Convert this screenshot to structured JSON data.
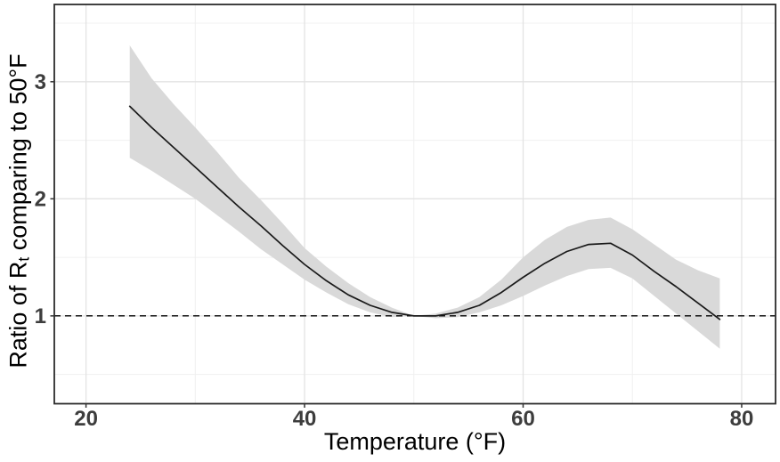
{
  "figure": {
    "background": "#ffffff"
  },
  "chart_data": {
    "type": "line",
    "title": "",
    "xlabel": "Temperature (°F)",
    "ylabel": "Ratio of Rt comparing to 50°F",
    "ylabel_parts": {
      "prefix": "Ratio of R",
      "subscript": "t",
      "suffix": " comparing to 50°F"
    },
    "x": [
      24,
      26,
      28,
      30,
      32,
      34,
      36,
      38,
      40,
      42,
      44,
      46,
      48,
      50,
      52,
      54,
      56,
      58,
      60,
      62,
      64,
      66,
      68,
      70,
      72,
      74,
      76,
      78
    ],
    "series": [
      {
        "name": "ratio-estimate",
        "values": [
          2.79,
          2.61,
          2.44,
          2.27,
          2.1,
          1.93,
          1.77,
          1.6,
          1.44,
          1.3,
          1.18,
          1.09,
          1.03,
          1.0,
          1.0,
          1.03,
          1.09,
          1.2,
          1.33,
          1.45,
          1.55,
          1.61,
          1.62,
          1.52,
          1.38,
          1.25,
          1.11,
          0.97
        ]
      },
      {
        "name": "ci-lower",
        "values": [
          2.35,
          2.24,
          2.12,
          2.0,
          1.86,
          1.72,
          1.57,
          1.44,
          1.31,
          1.2,
          1.1,
          1.03,
          0.99,
          1.0,
          0.98,
          0.99,
          1.03,
          1.09,
          1.17,
          1.26,
          1.34,
          1.4,
          1.41,
          1.32,
          1.17,
          1.02,
          0.87,
          0.72
        ]
      },
      {
        "name": "ci-upper",
        "values": [
          3.31,
          3.03,
          2.81,
          2.61,
          2.4,
          2.18,
          1.99,
          1.79,
          1.58,
          1.42,
          1.28,
          1.16,
          1.07,
          1.0,
          1.02,
          1.07,
          1.16,
          1.31,
          1.5,
          1.65,
          1.76,
          1.82,
          1.84,
          1.74,
          1.61,
          1.48,
          1.39,
          1.32
        ]
      }
    ],
    "reference_line": {
      "y": 1,
      "style": "dashed"
    },
    "axes": {
      "xlim": [
        17.1,
        83.1
      ],
      "ylim": [
        0.25,
        3.66
      ],
      "x_ticks": [
        20,
        40,
        60,
        80
      ],
      "x_tick_labels": [
        "20",
        "40",
        "60",
        "80"
      ],
      "x_minor": [
        30,
        50,
        70
      ],
      "y_ticks": [
        1,
        2,
        3
      ],
      "y_tick_labels": [
        "1",
        "2",
        "3"
      ],
      "y_minor": [
        0.5,
        1.5,
        2.5,
        3.5
      ],
      "grid": true,
      "legend": "none"
    },
    "colors": {
      "line": "#1a1a1a",
      "ribbon": "#d9d9d9",
      "grid_major": "#e3e3e3",
      "grid_minor": "#f0f0f0",
      "panel_border": "#2b2b2b",
      "tick": "#333333",
      "tick_label": "#3d3d3d",
      "axis_title": "#000000",
      "reference": "#000000"
    }
  }
}
